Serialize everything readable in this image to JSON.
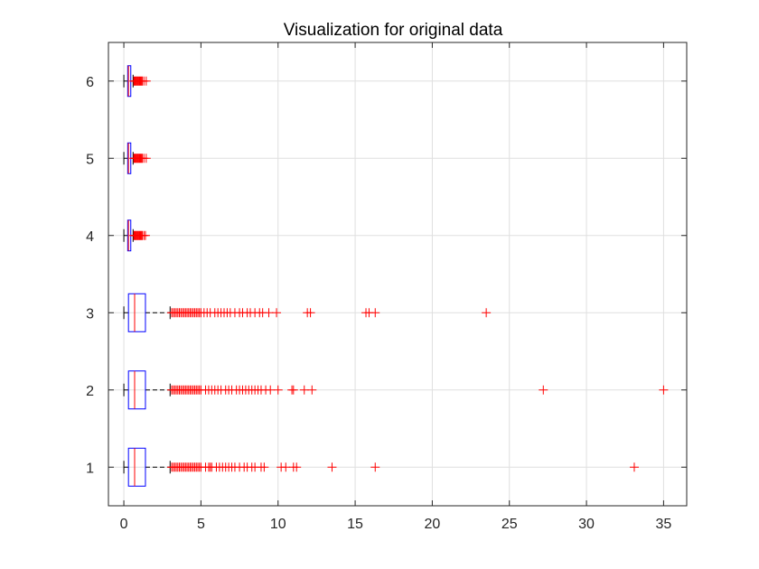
{
  "chart_data": {
    "type": "boxplot",
    "orientation": "horizontal",
    "title": "Visualization for original data",
    "xlabel": "",
    "ylabel": "",
    "xlim": [
      -1,
      36.5
    ],
    "ylim": [
      0.5,
      6.5
    ],
    "xticks": [
      0,
      5,
      10,
      15,
      20,
      25,
      30,
      35
    ],
    "xtick_labels": [
      "0",
      "5",
      "10",
      "15",
      "20",
      "25",
      "30",
      "35"
    ],
    "yticks": [
      1,
      2,
      3,
      4,
      5,
      6
    ],
    "ytick_labels": [
      "1",
      "2",
      "3",
      "4",
      "5",
      "6"
    ],
    "grid": true,
    "box_color": "#0000ff",
    "median_color": "#ff0000",
    "whisker_color": "#000000",
    "outlier_color": "#ff0000",
    "series": [
      {
        "category": "1",
        "whisker_low": 0,
        "q1": 0.3,
        "median": 0.7,
        "q3": 1.4,
        "whisker_high": 3.0,
        "outliers": [
          3.1,
          3.2,
          3.3,
          3.4,
          3.5,
          3.6,
          3.7,
          3.8,
          3.9,
          4.0,
          4.1,
          4.2,
          4.3,
          4.4,
          4.5,
          4.6,
          4.7,
          4.8,
          4.9,
          5.0,
          5.3,
          5.5,
          5.6,
          5.7,
          6.0,
          6.2,
          6.4,
          6.6,
          6.8,
          7.0,
          7.2,
          7.5,
          7.8,
          8.0,
          8.3,
          8.5,
          8.9,
          9.1,
          10.2,
          10.5,
          11.0,
          11.2,
          13.5,
          16.3,
          33.1
        ]
      },
      {
        "category": "2",
        "whisker_low": 0,
        "q1": 0.3,
        "median": 0.7,
        "q3": 1.4,
        "whisker_high": 3.0,
        "outliers": [
          3.1,
          3.2,
          3.3,
          3.4,
          3.5,
          3.6,
          3.7,
          3.8,
          3.9,
          4.0,
          4.1,
          4.2,
          4.3,
          4.4,
          4.5,
          4.6,
          4.7,
          4.8,
          4.9,
          5.0,
          5.3,
          5.5,
          5.7,
          5.9,
          6.1,
          6.3,
          6.6,
          6.8,
          7.0,
          7.3,
          7.5,
          7.7,
          7.9,
          8.1,
          8.3,
          8.5,
          8.7,
          8.9,
          9.2,
          9.5,
          10.0,
          10.9,
          11.0,
          11.7,
          12.2,
          27.2,
          35.0
        ]
      },
      {
        "category": "3",
        "whisker_low": 0,
        "q1": 0.3,
        "median": 0.7,
        "q3": 1.4,
        "whisker_high": 3.0,
        "outliers": [
          3.1,
          3.2,
          3.3,
          3.4,
          3.5,
          3.6,
          3.7,
          3.8,
          3.9,
          4.0,
          4.1,
          4.2,
          4.3,
          4.4,
          4.5,
          4.6,
          4.7,
          4.8,
          4.9,
          5.0,
          5.2,
          5.4,
          5.6,
          5.9,
          6.1,
          6.3,
          6.5,
          6.7,
          6.9,
          7.2,
          7.5,
          7.7,
          8.0,
          8.2,
          8.5,
          8.8,
          9.0,
          9.4,
          9.9,
          11.9,
          12.1,
          15.7,
          15.9,
          16.3,
          23.5
        ]
      },
      {
        "category": "4",
        "whisker_low": 0,
        "q1": 0.25,
        "median": 0.3,
        "q3": 0.45,
        "whisker_high": 0.6,
        "outliers": [
          0.65,
          0.7,
          0.75,
          0.8,
          0.85,
          0.9,
          0.95,
          1.0,
          1.05,
          1.1,
          1.15,
          1.2,
          1.3,
          1.4
        ]
      },
      {
        "category": "5",
        "whisker_low": 0,
        "q1": 0.25,
        "median": 0.3,
        "q3": 0.45,
        "whisker_high": 0.6,
        "outliers": [
          0.65,
          0.7,
          0.75,
          0.8,
          0.85,
          0.9,
          0.95,
          1.0,
          1.05,
          1.1,
          1.15,
          1.2,
          1.3,
          1.45
        ]
      },
      {
        "category": "6",
        "whisker_low": 0,
        "q1": 0.25,
        "median": 0.3,
        "q3": 0.45,
        "whisker_high": 0.6,
        "outliers": [
          0.65,
          0.7,
          0.75,
          0.8,
          0.85,
          0.9,
          0.95,
          1.0,
          1.05,
          1.1,
          1.15,
          1.2,
          1.3,
          1.45
        ]
      }
    ]
  }
}
